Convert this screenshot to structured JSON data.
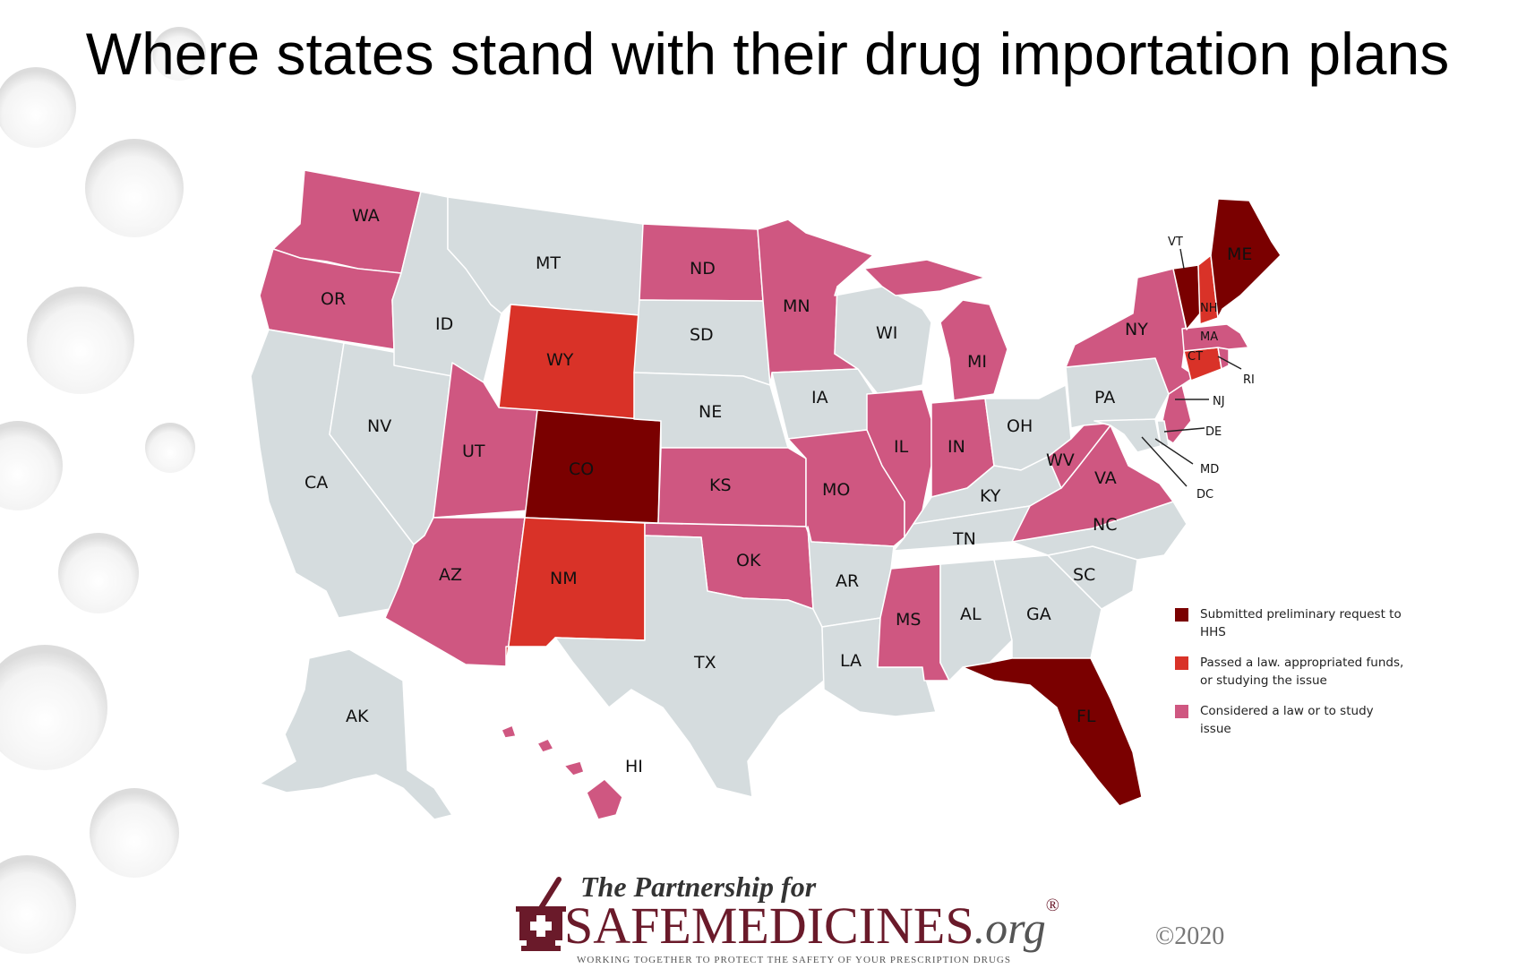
{
  "title": "Where states stand with their drug importation plans",
  "colors": {
    "none": "#d5dcde",
    "considered": "#cf5781",
    "passed": "#d93228",
    "submitted": "#7a0000",
    "border": "#ffffff"
  },
  "legend": [
    {
      "category": "submitted",
      "label": "Submitted preliminary request to HHS"
    },
    {
      "category": "passed",
      "label": "Passed a law. appropriated funds, or studying the issue"
    },
    {
      "category": "considered",
      "label": "Considered a law or to study issue"
    }
  ],
  "states": [
    {
      "abbr": "WA",
      "status": "considered"
    },
    {
      "abbr": "OR",
      "status": "considered"
    },
    {
      "abbr": "CA",
      "status": "none"
    },
    {
      "abbr": "NV",
      "status": "none"
    },
    {
      "abbr": "ID",
      "status": "none"
    },
    {
      "abbr": "MT",
      "status": "none"
    },
    {
      "abbr": "WY",
      "status": "passed"
    },
    {
      "abbr": "UT",
      "status": "considered"
    },
    {
      "abbr": "CO",
      "status": "submitted"
    },
    {
      "abbr": "AZ",
      "status": "considered"
    },
    {
      "abbr": "NM",
      "status": "passed"
    },
    {
      "abbr": "ND",
      "status": "considered"
    },
    {
      "abbr": "SD",
      "status": "none"
    },
    {
      "abbr": "NE",
      "status": "none"
    },
    {
      "abbr": "KS",
      "status": "considered"
    },
    {
      "abbr": "OK",
      "status": "considered"
    },
    {
      "abbr": "TX",
      "status": "none"
    },
    {
      "abbr": "MN",
      "status": "considered"
    },
    {
      "abbr": "IA",
      "status": "none"
    },
    {
      "abbr": "MO",
      "status": "considered"
    },
    {
      "abbr": "AR",
      "status": "none"
    },
    {
      "abbr": "LA",
      "status": "none"
    },
    {
      "abbr": "WI",
      "status": "none"
    },
    {
      "abbr": "IL",
      "status": "considered"
    },
    {
      "abbr": "MI",
      "status": "considered"
    },
    {
      "abbr": "IN",
      "status": "considered"
    },
    {
      "abbr": "OH",
      "status": "none"
    },
    {
      "abbr": "KY",
      "status": "none"
    },
    {
      "abbr": "TN",
      "status": "none"
    },
    {
      "abbr": "MS",
      "status": "considered"
    },
    {
      "abbr": "AL",
      "status": "none"
    },
    {
      "abbr": "GA",
      "status": "none"
    },
    {
      "abbr": "FL",
      "status": "submitted"
    },
    {
      "abbr": "SC",
      "status": "none"
    },
    {
      "abbr": "NC",
      "status": "none"
    },
    {
      "abbr": "VA",
      "status": "considered"
    },
    {
      "abbr": "WV",
      "status": "considered"
    },
    {
      "abbr": "PA",
      "status": "none"
    },
    {
      "abbr": "NY",
      "status": "considered"
    },
    {
      "abbr": "NJ",
      "status": "considered"
    },
    {
      "abbr": "DE",
      "status": "none"
    },
    {
      "abbr": "MD",
      "status": "none"
    },
    {
      "abbr": "DC",
      "status": "none"
    },
    {
      "abbr": "CT",
      "status": "passed"
    },
    {
      "abbr": "RI",
      "status": "considered"
    },
    {
      "abbr": "MA",
      "status": "considered"
    },
    {
      "abbr": "VT",
      "status": "submitted"
    },
    {
      "abbr": "NH",
      "status": "passed"
    },
    {
      "abbr": "ME",
      "status": "submitted"
    },
    {
      "abbr": "AK",
      "status": "none"
    },
    {
      "abbr": "HI",
      "status": "considered"
    }
  ],
  "logo": {
    "subtitle": "The Partnership for",
    "name": "SAFEMEDICINES",
    "suffix": ".org",
    "registered": "®",
    "tagline": "WORKING TOGETHER TO PROTECT THE SAFETY OF YOUR PRESCRIPTION DRUGS"
  },
  "copyright": "©2020"
}
